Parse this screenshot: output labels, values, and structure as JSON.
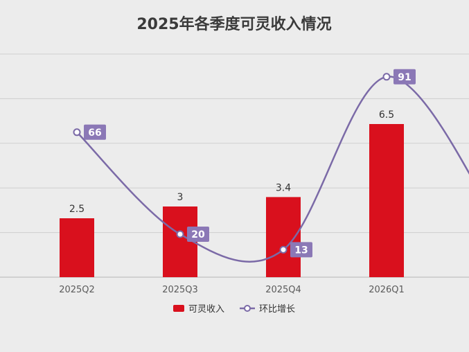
{
  "chart_data": {
    "type": "bar",
    "title": "2025年各季度可灵收入情况",
    "categories": [
      "2025Q2",
      "2025Q3",
      "2025Q4",
      "2026Q1"
    ],
    "series": [
      {
        "name": "可灵收入",
        "kind": "bar",
        "values": [
          2.5,
          3,
          3.4,
          6.5
        ],
        "color": "#d9101d"
      },
      {
        "name": "环比增长",
        "kind": "line",
        "values": [
          66,
          20,
          13,
          91
        ],
        "color": "#7b6aa7"
      }
    ],
    "bar_labels": [
      "2.5",
      "3",
      "3.4",
      "6.5"
    ],
    "line_labels": [
      "66",
      "20",
      "13",
      "91"
    ],
    "ylim": [
      0,
      10
    ],
    "line_ylim": [
      0,
      100
    ],
    "grid": true,
    "legend": "bottom"
  }
}
